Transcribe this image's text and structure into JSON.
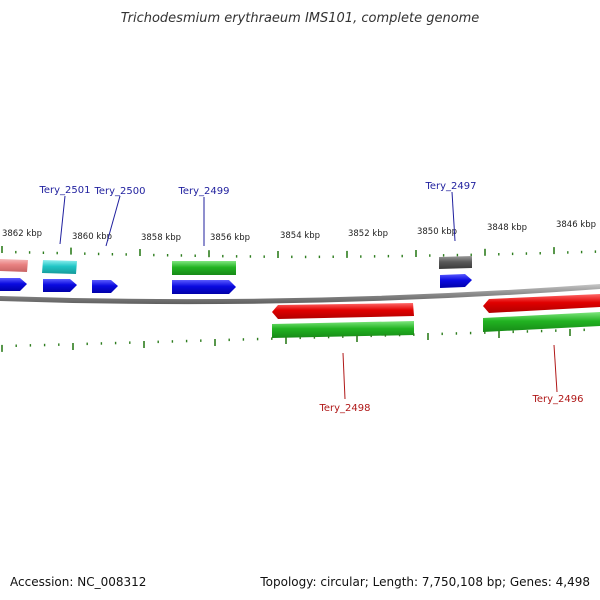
{
  "title": "Trichodesmium erythraeum IMS101, complete genome",
  "footer": {
    "accession": "Accession: NC_008312",
    "topology": "Topology: circular; Length: 7,750,108 bp; Genes: 4,498"
  },
  "colors": {
    "tick": "#2e7d1e",
    "backbone": "#8a8a8a",
    "label_forward": "#1f1f9e",
    "label_reverse": "#b01818",
    "red_gene": "#e00000",
    "green_gene": "#22b322",
    "blue_gene": "#0a0ae0",
    "cyan_gene": "#21c6c6",
    "gray_gene": "#5a5a5a",
    "pink_gene": "#e88080"
  },
  "ticks": [
    {
      "label": "3862 kbp"
    },
    {
      "label": "3860 kbp"
    },
    {
      "label": "3858 kbp"
    },
    {
      "label": "3856 kbp"
    },
    {
      "label": "3854 kbp"
    },
    {
      "label": "3852 kbp"
    },
    {
      "label": "3850 kbp"
    },
    {
      "label": "3848 kbp"
    },
    {
      "label": "3846 kbp"
    }
  ],
  "gene_labels": [
    {
      "text": "Tery_2501",
      "strand": "forward"
    },
    {
      "text": "Tery_2500",
      "strand": "forward"
    },
    {
      "text": "Tery_2499",
      "strand": "forward"
    },
    {
      "text": "Tery_2497",
      "strand": "forward"
    },
    {
      "text": "Tery_2498",
      "strand": "reverse"
    },
    {
      "text": "Tery_2496",
      "strand": "reverse"
    }
  ]
}
